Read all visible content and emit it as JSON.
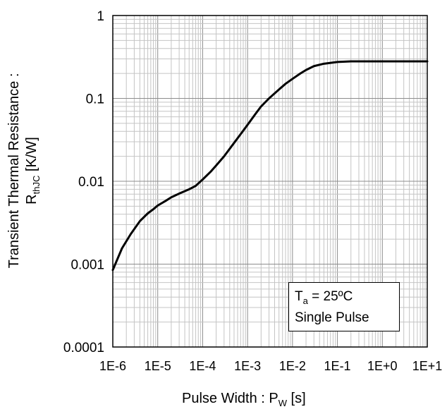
{
  "chart_data": {
    "type": "line",
    "xscale": "log",
    "yscale": "log",
    "xlim": [
      1e-06,
      10
    ],
    "ylim": [
      0.0001,
      1
    ],
    "x_tick_values": [
      1e-06,
      1e-05,
      0.0001,
      0.001,
      0.01,
      0.1,
      1,
      10
    ],
    "x_tick_labels": [
      "1E-6",
      "1E-5",
      "1E-4",
      "1E-3",
      "1E-2",
      "1E-1",
      "1E+0",
      "1E+1"
    ],
    "y_tick_values": [
      1,
      0.1,
      0.01,
      0.001,
      0.0001
    ],
    "y_tick_labels": [
      "1",
      "0.1",
      "0.01",
      "0.001",
      "0.0001"
    ],
    "grid": true,
    "series": [
      {
        "color": "#000000",
        "x": [
          1e-06,
          1.6e-06,
          2.5e-06,
          4e-06,
          6e-06,
          8e-06,
          1e-05,
          1.5e-05,
          2e-05,
          3e-05,
          5e-05,
          7e-05,
          0.0001,
          0.00015,
          0.0002,
          0.0003,
          0.0005,
          0.0007,
          0.001,
          0.0015,
          0.002,
          0.003,
          0.005,
          0.007,
          0.01,
          0.015,
          0.02,
          0.03,
          0.05,
          0.1,
          0.2,
          0.5,
          1,
          2,
          5,
          10
        ],
        "y": [
          0.00085,
          0.00155,
          0.0023,
          0.0033,
          0.0041,
          0.0046,
          0.0051,
          0.0058,
          0.0064,
          0.0071,
          0.008,
          0.0088,
          0.0105,
          0.013,
          0.0155,
          0.02,
          0.029,
          0.037,
          0.048,
          0.065,
          0.08,
          0.1,
          0.128,
          0.15,
          0.172,
          0.2,
          0.22,
          0.245,
          0.262,
          0.275,
          0.28,
          0.28,
          0.28,
          0.28,
          0.28,
          0.28
        ]
      }
    ],
    "xlabel_main": "Pulse Width : P",
    "xlabel_sub": "W",
    "xlabel_unit": " [s]",
    "ylabel_line1": "Transient Thermal Resistance :",
    "ylabel_line2_main": "R",
    "ylabel_line2_sub": "thJC",
    "ylabel_line2_unit": " [K/W]",
    "annotation": {
      "line1_main": "T",
      "line1_sub": "a",
      "line1_rest": " = 25ºC",
      "line2": "Single Pulse"
    }
  }
}
